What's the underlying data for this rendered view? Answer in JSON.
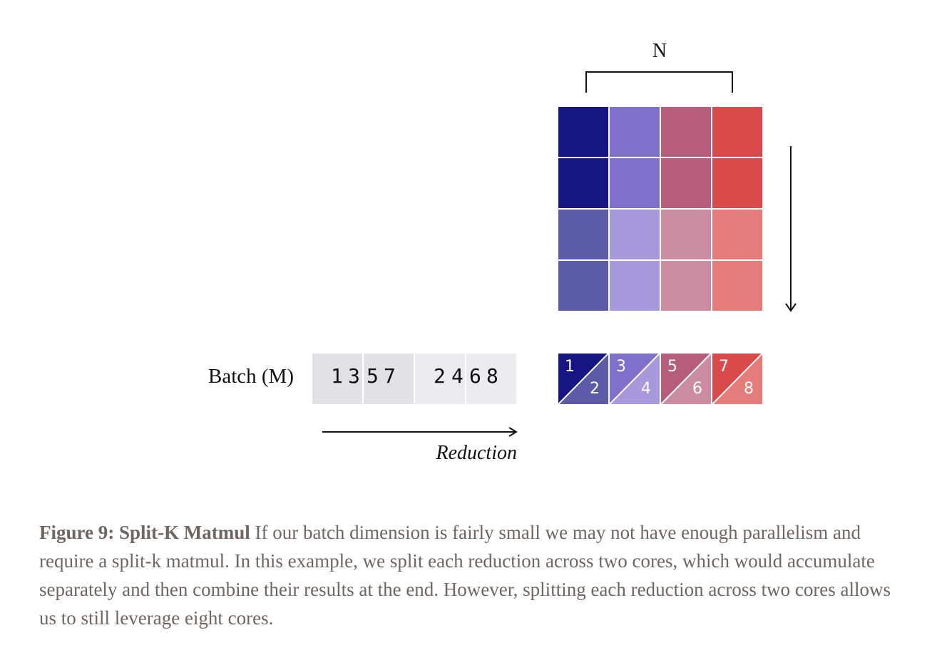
{
  "diagram": {
    "n_label": "N",
    "batch_label": "Batch (M)",
    "reduction_label": "Reduction",
    "batch_groups": [
      {
        "digits": [
          "1",
          "3",
          "5",
          "7"
        ]
      },
      {
        "digits": [
          "2",
          "4",
          "6",
          "8"
        ]
      }
    ],
    "weight_grid": {
      "rows": 4,
      "cols": 4,
      "colors": [
        [
          "#161583",
          "#8070cb",
          "#b75d7c",
          "#d94a4b"
        ],
        [
          "#161583",
          "#8070cb",
          "#b75d7c",
          "#d94a4b"
        ],
        [
          "#5c5ba8",
          "#a898dc",
          "#cb8ca2",
          "#e47c7a"
        ],
        [
          "#5c5ba8",
          "#a898dc",
          "#cb8ca2",
          "#e47c7a"
        ]
      ]
    },
    "output_cells": [
      {
        "top": "1",
        "bottom": "2",
        "top_color": "#161583",
        "bottom_color": "#5c5ba8"
      },
      {
        "top": "3",
        "bottom": "4",
        "top_color": "#8070cb",
        "bottom_color": "#a898dc"
      },
      {
        "top": "5",
        "bottom": "6",
        "top_color": "#b75d7c",
        "bottom_color": "#cb8ca2"
      },
      {
        "top": "7",
        "bottom": "8",
        "top_color": "#d94a4b",
        "bottom_color": "#e47c7a"
      }
    ]
  },
  "caption": {
    "label": "Figure 9: Split-K Matmul",
    "text": " If our batch dimension is fairly small we may not have enough parallelism and require a split-k matmul. In this example, we split each reduction across two cores, which would accumulate separately and then combine their results at the end. However, splitting each reduction across two cores allows us to still leverage eight cores."
  }
}
